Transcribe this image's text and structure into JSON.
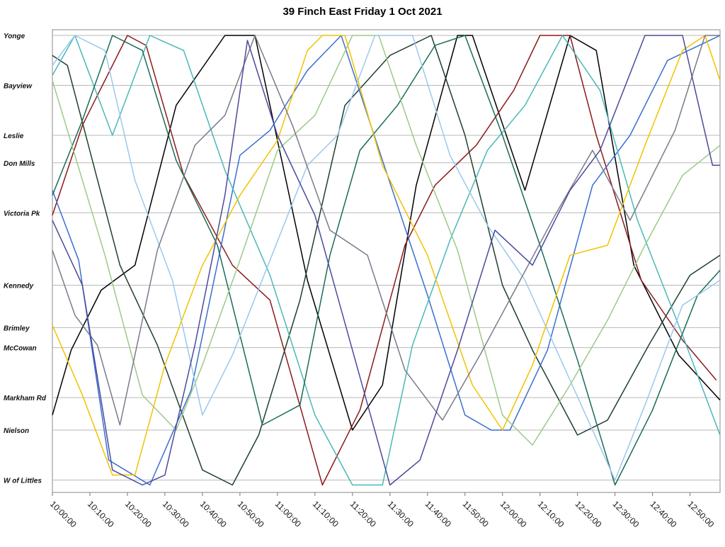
{
  "chart_data": {
    "type": "line",
    "title": "39 Finch East Friday 1 Oct 2021",
    "xlabel": "",
    "ylabel": "",
    "x_ticks": [
      "10:00:00",
      "10:10:00",
      "10:20:00",
      "10:30:00",
      "10:40:00",
      "10:50:00",
      "11:00:00",
      "11:10:00",
      "11:20:00",
      "11:30:00",
      "11:40:00",
      "11:50:00",
      "12:00:00",
      "12:10:00",
      "12:20:00",
      "12:30:00",
      "12:40:00",
      "12:50:00"
    ],
    "xlim": [
      "10:00:00",
      "12:58:00"
    ],
    "stops": [
      {
        "name": "Yonge",
        "pos": 0.0
      },
      {
        "name": "Bayview",
        "pos": 1.0
      },
      {
        "name": "Leslie",
        "pos": 2.0
      },
      {
        "name": "Don Mills",
        "pos": 2.55
      },
      {
        "name": "Victoria Pk",
        "pos": 3.55
      },
      {
        "name": "Kennedy",
        "pos": 5.0
      },
      {
        "name": "Brimley",
        "pos": 5.85
      },
      {
        "name": "McCowan",
        "pos": 6.25
      },
      {
        "name": "Markham Rd",
        "pos": 7.25
      },
      {
        "name": "Nielson",
        "pos": 7.9
      },
      {
        "name": "W of Littles",
        "pos": 8.9
      }
    ],
    "grid": true,
    "legend": "none",
    "series": [
      {
        "color": "#000000",
        "points": [
          [
            "10:00",
            7.6
          ],
          [
            "10:05",
            6.3
          ],
          [
            "10:13",
            5.1
          ],
          [
            "10:22",
            4.6
          ],
          [
            "10:33",
            1.4
          ],
          [
            "10:46",
            0.0
          ],
          [
            "10:54",
            0.0
          ],
          [
            "11:08",
            4.9
          ],
          [
            "11:20",
            7.9
          ],
          [
            "11:28",
            7.0
          ],
          [
            "11:37",
            3.0
          ],
          [
            "11:48",
            0.0
          ],
          [
            "11:52",
            0.0
          ],
          [
            "12:06",
            3.1
          ],
          [
            "12:18",
            0.0
          ],
          [
            "12:25",
            0.3
          ],
          [
            "12:35",
            4.6
          ],
          [
            "12:47",
            6.4
          ],
          [
            "12:58",
            7.3
          ]
        ]
      },
      {
        "color": "#1f3f2f",
        "points": [
          [
            "10:00",
            0.4
          ],
          [
            "10:04",
            0.6
          ],
          [
            "10:18",
            4.6
          ],
          [
            "10:28",
            6.2
          ],
          [
            "10:40",
            8.7
          ],
          [
            "10:48",
            9.0
          ],
          [
            "10:55",
            8.0
          ],
          [
            "11:06",
            5.3
          ],
          [
            "11:18",
            1.4
          ],
          [
            "11:30",
            0.4
          ],
          [
            "11:41",
            0.0
          ],
          [
            "11:50",
            2.0
          ],
          [
            "12:00",
            5.0
          ],
          [
            "12:08",
            6.3
          ],
          [
            "12:20",
            8.0
          ],
          [
            "12:28",
            7.7
          ],
          [
            "12:39",
            6.2
          ],
          [
            "12:50",
            4.8
          ],
          [
            "12:58",
            4.4
          ]
        ]
      },
      {
        "color": "#8b1a1a",
        "points": [
          [
            "10:00",
            3.6
          ],
          [
            "10:08",
            1.8
          ],
          [
            "10:20",
            0.0
          ],
          [
            "10:25",
            0.2
          ],
          [
            "10:35",
            2.8
          ],
          [
            "10:48",
            4.6
          ],
          [
            "10:58",
            5.3
          ],
          [
            "11:12",
            9.0
          ],
          [
            "11:22",
            7.5
          ],
          [
            "11:34",
            4.2
          ],
          [
            "11:42",
            3.0
          ],
          [
            "11:53",
            2.2
          ],
          [
            "12:03",
            1.1
          ],
          [
            "12:10",
            0.0
          ],
          [
            "12:18",
            0.0
          ],
          [
            "12:25",
            2.0
          ],
          [
            "12:37",
            4.9
          ],
          [
            "12:48",
            6.1
          ],
          [
            "12:57",
            6.9
          ]
        ]
      },
      {
        "color": "#3a6fd0",
        "points": [
          [
            "10:00",
            3.1
          ],
          [
            "10:07",
            4.5
          ],
          [
            "10:15",
            8.5
          ],
          [
            "10:26",
            9.0
          ],
          [
            "10:37",
            7.1
          ],
          [
            "10:50",
            2.4
          ],
          [
            "10:58",
            1.9
          ],
          [
            "11:08",
            0.7
          ],
          [
            "11:17",
            0.0
          ],
          [
            "11:28",
            2.5
          ],
          [
            "11:40",
            5.2
          ],
          [
            "11:50",
            7.6
          ],
          [
            "11:57",
            7.9
          ],
          [
            "12:02",
            7.9
          ],
          [
            "12:12",
            6.3
          ],
          [
            "12:24",
            3.0
          ],
          [
            "12:34",
            2.0
          ],
          [
            "12:44",
            0.5
          ],
          [
            "12:58",
            0.0
          ]
        ]
      },
      {
        "color": "#4ab8b8",
        "points": [
          [
            "10:00",
            0.8
          ],
          [
            "10:06",
            0.0
          ],
          [
            "10:16",
            2.0
          ],
          [
            "10:26",
            0.0
          ],
          [
            "10:35",
            0.3
          ],
          [
            "10:46",
            2.7
          ],
          [
            "10:58",
            4.8
          ],
          [
            "11:10",
            7.6
          ],
          [
            "11:20",
            9.0
          ],
          [
            "11:28",
            9.0
          ],
          [
            "11:36",
            6.2
          ],
          [
            "11:46",
            4.1
          ],
          [
            "11:56",
            2.3
          ],
          [
            "12:06",
            1.4
          ],
          [
            "12:16",
            0.0
          ],
          [
            "12:26",
            1.1
          ],
          [
            "12:36",
            3.7
          ],
          [
            "12:48",
            6.0
          ],
          [
            "12:58",
            8.0
          ]
        ]
      },
      {
        "color": "#1a6b5a",
        "points": [
          [
            "10:00",
            3.2
          ],
          [
            "10:08",
            1.7
          ],
          [
            "10:16",
            0.0
          ],
          [
            "10:24",
            0.3
          ],
          [
            "10:33",
            2.5
          ],
          [
            "10:44",
            4.2
          ],
          [
            "10:56",
            7.8
          ],
          [
            "11:06",
            7.4
          ],
          [
            "11:14",
            4.4
          ],
          [
            "11:22",
            2.3
          ],
          [
            "11:32",
            1.4
          ],
          [
            "11:42",
            0.2
          ],
          [
            "11:50",
            0.0
          ],
          [
            "12:00",
            2.0
          ],
          [
            "12:10",
            4.2
          ],
          [
            "12:20",
            6.5
          ],
          [
            "12:30",
            9.0
          ],
          [
            "12:40",
            7.5
          ],
          [
            "12:52",
            5.2
          ],
          [
            "12:58",
            4.7
          ]
        ]
      },
      {
        "color": "#9cc98a",
        "points": [
          [
            "10:00",
            0.9
          ],
          [
            "10:06",
            2.4
          ],
          [
            "10:14",
            4.4
          ],
          [
            "10:24",
            7.2
          ],
          [
            "10:33",
            7.9
          ],
          [
            "10:40",
            6.6
          ],
          [
            "10:50",
            4.5
          ],
          [
            "11:00",
            2.3
          ],
          [
            "11:10",
            1.6
          ],
          [
            "11:20",
            0.0
          ],
          [
            "11:27",
            0.0
          ],
          [
            "11:37",
            2.2
          ],
          [
            "11:48",
            4.3
          ],
          [
            "12:00",
            7.6
          ],
          [
            "12:08",
            8.2
          ],
          [
            "12:18",
            7.0
          ],
          [
            "12:28",
            5.7
          ],
          [
            "12:38",
            4.2
          ],
          [
            "12:48",
            2.8
          ],
          [
            "12:58",
            2.2
          ]
        ]
      },
      {
        "color": "#9bc8ec",
        "points": [
          [
            "10:00",
            0.6
          ],
          [
            "10:06",
            0.0
          ],
          [
            "10:14",
            0.3
          ],
          [
            "10:22",
            2.9
          ],
          [
            "10:32",
            4.9
          ],
          [
            "10:40",
            7.6
          ],
          [
            "10:48",
            6.4
          ],
          [
            "10:58",
            4.5
          ],
          [
            "11:08",
            2.6
          ],
          [
            "11:16",
            2.0
          ],
          [
            "11:26",
            0.0
          ],
          [
            "11:36",
            0.0
          ],
          [
            "11:46",
            2.4
          ],
          [
            "11:56",
            3.8
          ],
          [
            "12:06",
            4.9
          ],
          [
            "12:18",
            6.9
          ],
          [
            "12:30",
            8.9
          ],
          [
            "12:38",
            7.4
          ],
          [
            "12:48",
            5.4
          ],
          [
            "12:58",
            4.9
          ]
        ]
      },
      {
        "color": "#f2c200",
        "points": [
          [
            "10:00",
            5.8
          ],
          [
            "10:08",
            7.2
          ],
          [
            "10:16",
            8.8
          ],
          [
            "10:22",
            8.8
          ],
          [
            "10:30",
            6.6
          ],
          [
            "10:40",
            4.6
          ],
          [
            "10:50",
            3.2
          ],
          [
            "11:00",
            2.1
          ],
          [
            "11:08",
            0.3
          ],
          [
            "11:12",
            0.0
          ],
          [
            "11:18",
            0.0
          ],
          [
            "11:28",
            2.6
          ],
          [
            "11:40",
            4.4
          ],
          [
            "11:52",
            7.0
          ],
          [
            "12:00",
            7.9
          ],
          [
            "12:08",
            6.6
          ],
          [
            "12:18",
            4.4
          ],
          [
            "12:28",
            4.2
          ],
          [
            "12:38",
            2.2
          ],
          [
            "12:48",
            0.3
          ],
          [
            "12:54",
            0.0
          ],
          [
            "12:58",
            0.9
          ]
        ]
      },
      {
        "color": "#7a7a8c",
        "points": [
          [
            "10:00",
            4.3
          ],
          [
            "10:06",
            5.6
          ],
          [
            "10:12",
            6.2
          ],
          [
            "10:18",
            7.8
          ],
          [
            "10:28",
            4.3
          ],
          [
            "10:38",
            2.2
          ],
          [
            "10:46",
            1.6
          ],
          [
            "10:54",
            0.0
          ],
          [
            "11:04",
            1.8
          ],
          [
            "11:14",
            3.9
          ],
          [
            "11:24",
            4.4
          ],
          [
            "11:34",
            6.7
          ],
          [
            "11:44",
            7.7
          ],
          [
            "11:54",
            6.4
          ],
          [
            "12:04",
            5.0
          ],
          [
            "12:14",
            3.6
          ],
          [
            "12:24",
            2.3
          ],
          [
            "12:34",
            3.7
          ],
          [
            "12:46",
            1.9
          ],
          [
            "12:54",
            0.0
          ],
          [
            "12:58",
            0.0
          ]
        ]
      },
      {
        "color": "#4a4a9c",
        "points": [
          [
            "10:00",
            3.7
          ],
          [
            "10:08",
            5.0
          ],
          [
            "10:16",
            8.7
          ],
          [
            "10:24",
            9.0
          ],
          [
            "10:30",
            8.8
          ],
          [
            "10:38",
            6.2
          ],
          [
            "10:46",
            3.2
          ],
          [
            "10:52",
            0.1
          ],
          [
            "11:00",
            2.0
          ],
          [
            "11:10",
            3.6
          ],
          [
            "11:20",
            6.3
          ],
          [
            "11:30",
            9.0
          ],
          [
            "11:38",
            8.5
          ],
          [
            "11:48",
            6.3
          ],
          [
            "11:58",
            3.9
          ],
          [
            "12:08",
            4.6
          ],
          [
            "12:18",
            3.1
          ],
          [
            "12:26",
            2.3
          ],
          [
            "12:38",
            0.0
          ],
          [
            "12:48",
            0.0
          ],
          [
            "12:56",
            2.6
          ],
          [
            "12:58",
            2.6
          ]
        ]
      }
    ]
  }
}
